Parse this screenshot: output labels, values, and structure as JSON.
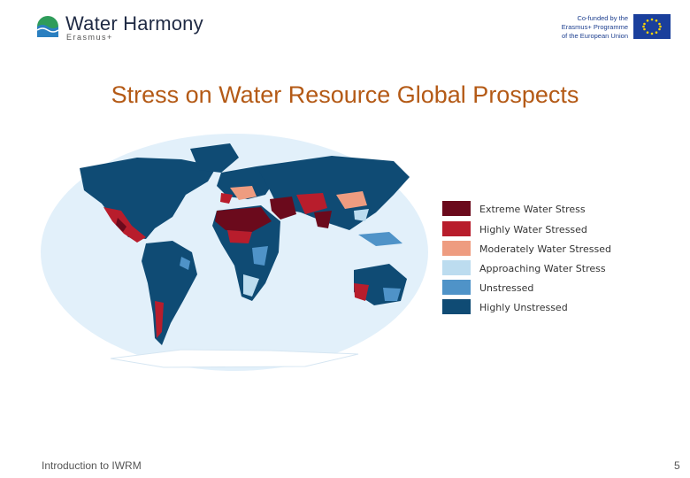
{
  "header": {
    "logo_text": "Water Harmony",
    "logo_subtext": "Erasmus+",
    "eu_text_lines": [
      "Co-funded by the",
      "Erasmus+ Programme",
      "of the European Union"
    ]
  },
  "title": "Stress on Water Resource Global Prospects",
  "legend": [
    {
      "label": "Extreme Water Stress",
      "color": "#6b0a1c"
    },
    {
      "label": "Highly Water Stressed",
      "color": "#b81d2c"
    },
    {
      "label": "Moderately Water Stressed",
      "color": "#ee9c80"
    },
    {
      "label": "Approaching Water Stress",
      "color": "#bcdcef"
    },
    {
      "label": "Unstressed",
      "color": "#4f93c8"
    },
    {
      "label": "Highly Unstressed",
      "color": "#0f4b74"
    }
  ],
  "footer": {
    "text": "Introduction to IWRM",
    "page": "5"
  }
}
